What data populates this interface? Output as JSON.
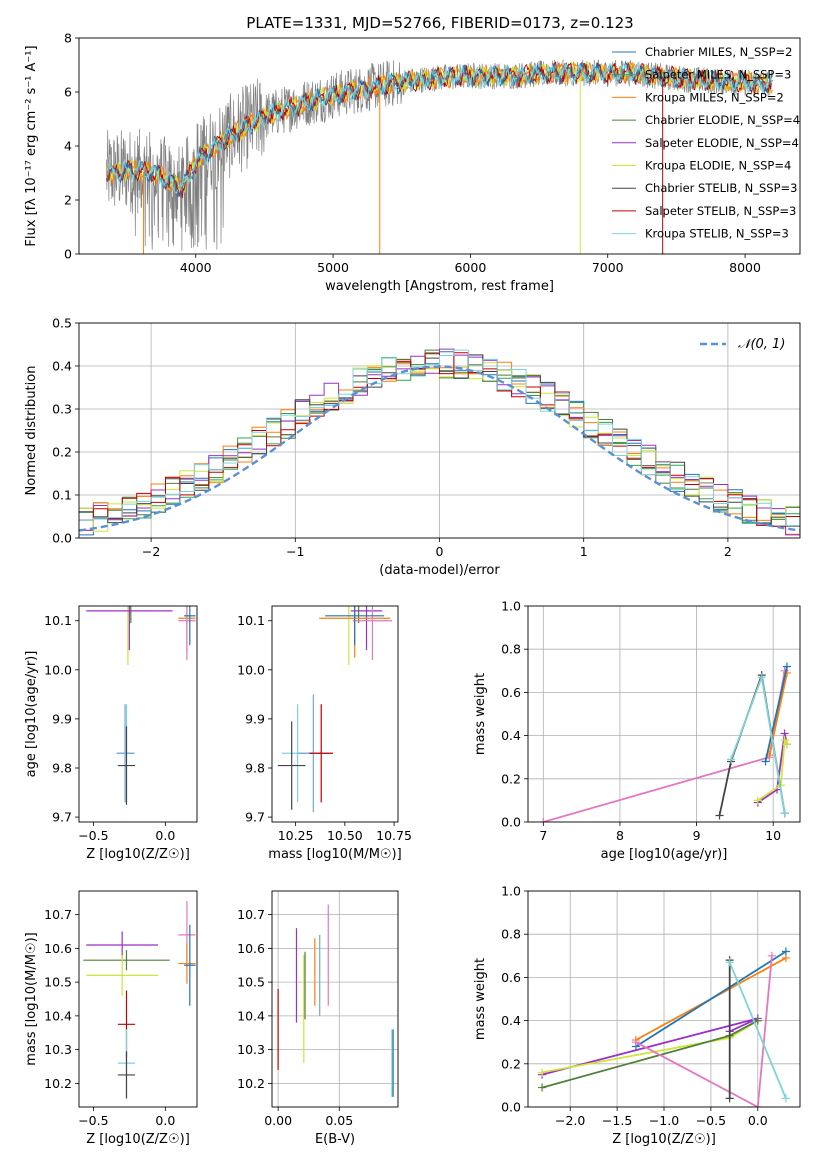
{
  "figure": {
    "title": "PLATE=1331, MJD=52766, FIBERID=0173, z=0.123"
  },
  "model_colors": {
    "Chabrier MILES": "#1f77b4",
    "Salpeter MILES": "#31a354",
    "Kroupa MILES": "#ff7f0e",
    "Chabrier ELODIE": "#4f7f3a",
    "Salpeter ELODIE": "#9b30c8",
    "Kroupa ELODIE": "#cce639",
    "Chabrier STELIB": "#444444",
    "Salpeter STELIB": "#c00000",
    "Kroupa STELIB": "#7fd3d8",
    "data": "#808080",
    "normal": "#5b8fd6",
    "extra_pink": "#e377c2",
    "extra_blue": "#6fa8dc"
  },
  "chart_data": [
    {
      "id": "spectrum",
      "type": "line",
      "xlabel": "wavelength [Angstrom, rest frame]",
      "ylabel": "Flux [fλ 10⁻¹⁷ erg cm⁻² s⁻¹ A⁻¹]",
      "xlim": [
        3150,
        8400
      ],
      "ylim": [
        0,
        8
      ],
      "xticks": [
        4000,
        5000,
        6000,
        7000,
        8000
      ],
      "yticks": [
        0,
        2,
        4,
        6,
        8
      ],
      "continuum": {
        "x": [
          3350,
          3500,
          3700,
          3900,
          4000,
          4200,
          4500,
          4800,
          5100,
          5400,
          5700,
          6000,
          6300,
          6600,
          6900,
          7200,
          7500,
          7800,
          8200
        ],
        "y": [
          3.0,
          3.1,
          3.0,
          2.4,
          3.4,
          4.2,
          5.1,
          5.6,
          6.0,
          6.3,
          6.5,
          6.6,
          6.6,
          6.7,
          6.7,
          6.7,
          6.5,
          6.4,
          6.3
        ]
      },
      "legend": [
        {
          "label": "Chabrier MILES, N_SSP=2",
          "color_key": "Chabrier MILES"
        },
        {
          "label": "Salpeter MILES, N_SSP=3",
          "color_key": "Salpeter MILES"
        },
        {
          "label": "Kroupa MILES, N_SSP=2",
          "color_key": "Kroupa MILES"
        },
        {
          "label": "Chabrier ELODIE, N_SSP=4",
          "color_key": "Chabrier ELODIE"
        },
        {
          "label": "Salpeter ELODIE, N_SSP=4",
          "color_key": "Salpeter ELODIE"
        },
        {
          "label": "Kroupa ELODIE, N_SSP=4",
          "color_key": "Kroupa ELODIE"
        },
        {
          "label": "Chabrier STELIB, N_SSP=3",
          "color_key": "Chabrier STELIB"
        },
        {
          "label": "Salpeter STELIB, N_SSP=3",
          "color_key": "Salpeter STELIB"
        },
        {
          "label": "Kroupa STELIB, N_SSP=3",
          "color_key": "Kroupa STELIB"
        }
      ]
    },
    {
      "id": "residuals",
      "type": "histogram",
      "xlabel": "(data-model)/error",
      "ylabel": "Normed distribution",
      "xlim": [
        -2.5,
        2.5
      ],
      "ylim": [
        0,
        0.5
      ],
      "xticks": [
        -2,
        -1,
        0,
        1,
        2
      ],
      "yticks": [
        0.0,
        0.1,
        0.2,
        0.3,
        0.4,
        0.5
      ],
      "grid": true,
      "legend": [
        {
          "label": "𝒩(0, 1)",
          "color_key": "normal",
          "dashed": true
        }
      ],
      "bin_width": 0.1
    },
    {
      "id": "age_vs_Z",
      "type": "errorbar",
      "xlabel": "Z [log10(Z/Z☉)]",
      "ylabel": "age  [log10(age/yr)]",
      "xlim": [
        -0.6,
        0.22
      ],
      "ylim": [
        9.69,
        10.13
      ],
      "xticks": [
        -0.5,
        0.0
      ],
      "yticks": [
        9.7,
        9.8,
        9.9,
        10.0,
        10.1
      ],
      "points": [
        {
          "color_key": "Salpeter MILES",
          "x": -0.2,
          "xerr": 0.36,
          "y": 10.155,
          "yerr": 0.02
        },
        {
          "color_key": "Chabrier ELODIE",
          "x": -0.24,
          "xerr": 0.3,
          "y": 10.155,
          "yerr": 0.06
        },
        {
          "color_key": "Kroupa ELODIE",
          "x": -0.26,
          "xerr": 0.3,
          "y": 10.14,
          "yerr": 0.13
        },
        {
          "color_key": "Salpeter ELODIE",
          "x": -0.25,
          "xerr": 0.3,
          "y": 10.12,
          "yerr": 0.08
        },
        {
          "color_key": "Kroupa MILES",
          "x": 0.15,
          "xerr": 0.06,
          "y": 10.105,
          "yerr": 0.07
        },
        {
          "color_key": "extra_pink",
          "x": 0.15,
          "xerr": 0.06,
          "y": 10.1,
          "yerr": 0.08
        },
        {
          "color_key": "Chabrier MILES",
          "x": 0.17,
          "xerr": 0.04,
          "y": 10.11,
          "yerr": 0.06
        },
        {
          "color_key": "Kroupa STELIB",
          "x": -0.27,
          "xerr": 0.06,
          "y": 9.83,
          "yerr": 0.1
        },
        {
          "color_key": "extra_blue",
          "x": -0.28,
          "xerr": 0.06,
          "y": 9.83,
          "yerr": 0.1
        },
        {
          "color_key": "Chabrier STELIB",
          "x": -0.27,
          "xerr": 0.06,
          "y": 9.805,
          "yerr": 0.08
        }
      ]
    },
    {
      "id": "age_vs_mass",
      "type": "errorbar",
      "xlabel": "mass [log10(M/M☉)]",
      "ylabel": "",
      "xlim": [
        10.13,
        10.77
      ],
      "ylim": [
        9.69,
        10.13
      ],
      "xticks": [
        10.25,
        10.5,
        10.75
      ],
      "yticks": [
        9.7,
        9.8,
        9.9,
        10.0,
        10.1
      ],
      "points": [
        {
          "color_key": "Salpeter MILES",
          "x": 10.56,
          "xerr": 0.2,
          "y": 10.155,
          "yerr": 0.02
        },
        {
          "color_key": "Chabrier ELODIE",
          "x": 10.57,
          "xerr": 0.18,
          "y": 10.155,
          "yerr": 0.06
        },
        {
          "color_key": "Kroupa ELODIE",
          "x": 10.52,
          "xerr": 0.2,
          "y": 10.14,
          "yerr": 0.13
        },
        {
          "color_key": "Salpeter ELODIE",
          "x": 10.61,
          "xerr": 0.08,
          "y": 10.12,
          "yerr": 0.08
        },
        {
          "color_key": "Kroupa MILES",
          "x": 10.55,
          "xerr": 0.18,
          "y": 10.105,
          "yerr": 0.08
        },
        {
          "color_key": "extra_pink",
          "x": 10.64,
          "xerr": 0.1,
          "y": 10.1,
          "yerr": 0.08
        },
        {
          "color_key": "Chabrier MILES",
          "x": 10.55,
          "xerr": 0.15,
          "y": 10.11,
          "yerr": 0.06
        },
        {
          "color_key": "Kroupa STELIB",
          "x": 10.26,
          "xerr": 0.08,
          "y": 9.83,
          "yerr": 0.1
        },
        {
          "color_key": "extra_blue",
          "x": 10.34,
          "xerr": 0.08,
          "y": 9.83,
          "yerr": 0.12
        },
        {
          "color_key": "Salpeter STELIB",
          "x": 10.38,
          "xerr": 0.06,
          "y": 9.83,
          "yerr": 0.1
        },
        {
          "color_key": "Chabrier STELIB",
          "x": 10.23,
          "xerr": 0.07,
          "y": 9.805,
          "yerr": 0.09
        }
      ]
    },
    {
      "id": "weight_vs_age",
      "type": "line",
      "xlabel": "age  [log10(age/yr)]",
      "ylabel": "mass weight",
      "xlim": [
        6.8,
        10.35
      ],
      "ylim": [
        0,
        1
      ],
      "xticks": [
        7,
        8,
        9,
        10
      ],
      "yticks": [
        0.0,
        0.2,
        0.4,
        0.6,
        0.8,
        1.0
      ],
      "grid": true,
      "series": [
        {
          "color_key": "extra_pink",
          "x": [
            7.0,
            9.95,
            10.15
          ],
          "y": [
            0.0,
            0.3,
            0.7
          ]
        },
        {
          "color_key": "Kroupa MILES",
          "x": [
            9.95,
            10.18
          ],
          "y": [
            0.31,
            0.69
          ]
        },
        {
          "color_key": "Chabrier MILES",
          "x": [
            9.9,
            10.18
          ],
          "y": [
            0.28,
            0.72
          ]
        },
        {
          "color_key": "Salpeter ELODIE",
          "x": [
            9.8,
            10.05,
            10.15,
            10.18
          ],
          "y": [
            0.09,
            0.15,
            0.41,
            0.36
          ]
        },
        {
          "color_key": "Kroupa ELODIE",
          "x": [
            9.8,
            10.1,
            10.15,
            10.18
          ],
          "y": [
            0.1,
            0.17,
            0.38,
            0.36
          ]
        },
        {
          "color_key": "Chabrier STELIB",
          "x": [
            9.3,
            9.45,
            9.85,
            10.15
          ],
          "y": [
            0.03,
            0.28,
            0.68,
            0.04
          ]
        },
        {
          "color_key": "Kroupa STELIB",
          "x": [
            9.45,
            9.85,
            10.15
          ],
          "y": [
            0.29,
            0.67,
            0.04
          ]
        }
      ]
    },
    {
      "id": "mass_vs_Z",
      "type": "errorbar",
      "xlabel": "Z [log10(Z/Z☉)]",
      "ylabel": "mass [log10(M/M☉)]",
      "xlim": [
        -0.6,
        0.22
      ],
      "ylim": [
        10.13,
        10.77
      ],
      "xticks": [
        -0.5,
        0.0
      ],
      "yticks": [
        10.2,
        10.3,
        10.4,
        10.5,
        10.6,
        10.7
      ],
      "points": [
        {
          "color_key": "Salpeter ELODIE",
          "x": -0.3,
          "xerr": 0.25,
          "y": 10.61,
          "yerr": 0.04
        },
        {
          "color_key": "Chabrier ELODIE",
          "x": -0.27,
          "xerr": 0.3,
          "y": 10.565,
          "yerr": 0.03
        },
        {
          "color_key": "Kroupa ELODIE",
          "x": -0.3,
          "xerr": 0.25,
          "y": 10.52,
          "yerr": 0.06
        },
        {
          "color_key": "extra_pink",
          "x": 0.15,
          "xerr": 0.06,
          "y": 10.64,
          "yerr": 0.1
        },
        {
          "color_key": "Kroupa MILES",
          "x": 0.15,
          "xerr": 0.06,
          "y": 10.555,
          "yerr": 0.06
        },
        {
          "color_key": "Chabrier MILES",
          "x": 0.17,
          "xerr": 0.04,
          "y": 10.55,
          "yerr": 0.12
        },
        {
          "color_key": "Salpeter STELIB",
          "x": -0.27,
          "xerr": 0.06,
          "y": 10.375,
          "yerr": 0.1
        },
        {
          "color_key": "Kroupa STELIB",
          "x": -0.27,
          "xerr": 0.06,
          "y": 10.26,
          "yerr": 0.1
        },
        {
          "color_key": "Chabrier STELIB",
          "x": -0.27,
          "xerr": 0.06,
          "y": 10.225,
          "yerr": 0.07
        }
      ]
    },
    {
      "id": "mass_vs_ebv",
      "type": "errorbar",
      "xlabel": "E(B-V)",
      "ylabel": "",
      "xlim": [
        -0.005,
        0.098
      ],
      "ylim": [
        10.13,
        10.77
      ],
      "xticks": [
        0.0,
        0.05
      ],
      "yticks": [
        10.2,
        10.3,
        10.4,
        10.5,
        10.6,
        10.7
      ],
      "grid": true,
      "points": [
        {
          "color_key": "Salpeter STELIB",
          "x": 0.0,
          "xerr": 0,
          "y": 10.36,
          "yerr": 0.12
        },
        {
          "color_key": "Salpeter ELODIE",
          "x": 0.015,
          "xerr": 0,
          "y": 10.52,
          "yerr": 0.14
        },
        {
          "color_key": "Kroupa ELODIE",
          "x": 0.021,
          "xerr": 0,
          "y": 10.42,
          "yerr": 0.16
        },
        {
          "color_key": "Chabrier ELODIE",
          "x": 0.022,
          "xerr": 0,
          "y": 10.49,
          "yerr": 0.1
        },
        {
          "color_key": "Kroupa MILES",
          "x": 0.03,
          "xerr": 0,
          "y": 10.53,
          "yerr": 0.1
        },
        {
          "color_key": "extra_blue",
          "x": 0.034,
          "xerr": 0,
          "y": 10.52,
          "yerr": 0.12
        },
        {
          "color_key": "extra_pink",
          "x": 0.041,
          "xerr": 0,
          "y": 10.58,
          "yerr": 0.15
        },
        {
          "color_key": "Kroupa STELIB",
          "x": 0.093,
          "xerr": 0,
          "y": 10.26,
          "yerr": 0.1
        },
        {
          "color_key": "Chabrier MILES",
          "x": 0.094,
          "xerr": 0,
          "y": 10.26,
          "yerr": 0.1
        }
      ]
    },
    {
      "id": "weight_vs_Z",
      "type": "line",
      "xlabel": "Z [log10(Z/Z☉)]",
      "ylabel": "mass weight",
      "xlim": [
        -2.45,
        0.45
      ],
      "ylim": [
        0,
        1
      ],
      "xticks": [
        -2.0,
        -1.5,
        -1.0,
        -0.5,
        0.0
      ],
      "yticks": [
        0.0,
        0.2,
        0.4,
        0.6,
        0.8,
        1.0
      ],
      "grid": true,
      "series": [
        {
          "color_key": "Kroupa MILES",
          "x": [
            -1.3,
            0.3
          ],
          "y": [
            0.31,
            0.69
          ]
        },
        {
          "color_key": "Chabrier MILES",
          "x": [
            -1.3,
            0.3
          ],
          "y": [
            0.28,
            0.72
          ]
        },
        {
          "color_key": "Salpeter ELODIE",
          "x": [
            -2.3,
            0.0,
            -0.3
          ],
          "y": [
            0.15,
            0.41,
            0.35
          ]
        },
        {
          "color_key": "Kroupa ELODIE",
          "x": [
            -2.3,
            -0.3,
            0.0
          ],
          "y": [
            0.16,
            0.32,
            0.4
          ]
        },
        {
          "color_key": "Chabrier ELODIE",
          "x": [
            -2.3,
            -0.3,
            0.0
          ],
          "y": [
            0.09,
            0.33,
            0.4
          ]
        },
        {
          "color_key": "extra_pink",
          "x": [
            -1.3,
            0.0,
            0.15
          ],
          "y": [
            0.3,
            0.0,
            0.7
          ]
        },
        {
          "color_key": "Chabrier STELIB",
          "x": [
            -0.3,
            -0.3
          ],
          "y": [
            0.04,
            0.68
          ]
        },
        {
          "color_key": "Kroupa STELIB",
          "x": [
            -0.3,
            0.3
          ],
          "y": [
            0.67,
            0.04
          ]
        }
      ]
    }
  ]
}
